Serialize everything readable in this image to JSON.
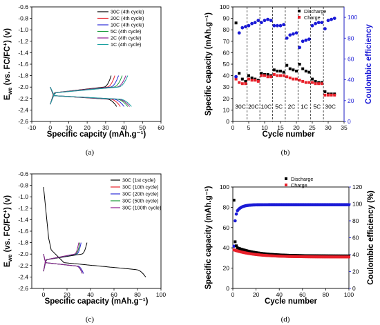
{
  "chart_data": [
    {
      "panel": "(a)",
      "type": "line",
      "xlabel": "Specific capcity (mAh.g⁻¹)",
      "ylabel_main": "E",
      "ylabel_sub": "we",
      "ylabel_rest": " (vs. FC/FC",
      "ylabel_sup": "+",
      "ylabel_end": ") (v)",
      "xlim": [
        -10,
        60
      ],
      "ylim": [
        -2.6,
        -0.6
      ],
      "xticks": [
        "-10",
        "0",
        "10",
        "20",
        "30",
        "40",
        "50",
        "60"
      ],
      "yticks": [
        "-2.6",
        "-2.4",
        "-2.2",
        "-2.0",
        "-1.8",
        "-1.6",
        "-1.4",
        "-1.2",
        "-1.0",
        "-0.8",
        "-0.6"
      ],
      "series": [
        {
          "name": "30C (4th cycle)",
          "rate": "30C",
          "color": "#000000",
          "discharge_end": 36,
          "charge_end": 33,
          "curve": "flat"
        },
        {
          "name": "20C (4th cycle)",
          "rate": "20C",
          "color": "#e8202a",
          "discharge_end": 38,
          "charge_end": 35,
          "curve": "flat"
        },
        {
          "name": "10C (4th cycle)",
          "rate": "10C",
          "color": "#2b2bd8",
          "discharge_end": 40,
          "charge_end": 37,
          "curve": "flat"
        },
        {
          "name": "5C (4th cycle)",
          "rate": "5C",
          "color": "#1a9a3a",
          "discharge_end": 42,
          "charge_end": 39,
          "curve": "flat"
        },
        {
          "name": "2C (4th cycle)",
          "rate": "2C",
          "color": "#8e1a8e",
          "discharge_end": 43,
          "charge_end": 41,
          "curve": "flat"
        },
        {
          "name": "1C (4th cycle)",
          "rate": "1C",
          "color": "#1aa0a0",
          "discharge_end": 44,
          "charge_end": 42,
          "curve": "flat"
        }
      ]
    },
    {
      "panel": "(b)",
      "type": "scatter",
      "xlabel": "Cycle number",
      "ylabel": "Specific capacity (mAh.g⁻¹)",
      "y2label": "Coulombic efficiency",
      "xlim": [
        0,
        35
      ],
      "ylim": [
        0,
        100
      ],
      "y2lim": [
        0,
        110
      ],
      "xticks": [
        "0",
        "5",
        "10",
        "15",
        "20",
        "25",
        "30",
        "35"
      ],
      "yticks": [
        "0",
        "10",
        "20",
        "30",
        "40",
        "50",
        "60",
        "70",
        "80",
        "90",
        "100"
      ],
      "y2ticks": [
        "0",
        "20",
        "40",
        "60",
        "80",
        "100"
      ],
      "rates": [
        "30C",
        "20C",
        "10C",
        "5C",
        "2C",
        "1C",
        "5C",
        "30C"
      ],
      "dividers": [
        4.5,
        8.5,
        12.5,
        16.5,
        20.5,
        24.5,
        28.5
      ],
      "legend": [
        "Discharge",
        "Charge"
      ],
      "discharge": [
        [
          1,
          86
        ],
        [
          2,
          42
        ],
        [
          3,
          37
        ],
        [
          4,
          35
        ],
        [
          5,
          40
        ],
        [
          6,
          38
        ],
        [
          7,
          37
        ],
        [
          8,
          36
        ],
        [
          9,
          42
        ],
        [
          10,
          41
        ],
        [
          11,
          41
        ],
        [
          12,
          40
        ],
        [
          13,
          45
        ],
        [
          14,
          44
        ],
        [
          15,
          44
        ],
        [
          16,
          43
        ],
        [
          17,
          49
        ],
        [
          18,
          46
        ],
        [
          19,
          45
        ],
        [
          20,
          44
        ],
        [
          21,
          50
        ],
        [
          22,
          46
        ],
        [
          23,
          44
        ],
        [
          24,
          43
        ],
        [
          25,
          37
        ],
        [
          26,
          35
        ],
        [
          27,
          34
        ],
        [
          28,
          34
        ],
        [
          29,
          26
        ],
        [
          30,
          24
        ],
        [
          31,
          24
        ],
        [
          32,
          24
        ]
      ],
      "charge": [
        [
          1,
          37
        ],
        [
          2,
          34
        ],
        [
          3,
          33
        ],
        [
          4,
          33
        ],
        [
          5,
          37
        ],
        [
          6,
          36
        ],
        [
          7,
          36
        ],
        [
          8,
          35
        ],
        [
          9,
          40
        ],
        [
          10,
          40
        ],
        [
          11,
          39
        ],
        [
          12,
          39
        ],
        [
          13,
          41
        ],
        [
          14,
          40
        ],
        [
          15,
          40
        ],
        [
          16,
          40
        ],
        [
          17,
          39
        ],
        [
          18,
          38
        ],
        [
          19,
          37
        ],
        [
          20,
          37
        ],
        [
          21,
          36
        ],
        [
          22,
          35
        ],
        [
          23,
          34
        ],
        [
          24,
          34
        ],
        [
          25,
          34
        ],
        [
          26,
          33
        ],
        [
          27,
          33
        ],
        [
          28,
          33
        ],
        [
          29,
          23
        ],
        [
          30,
          23
        ],
        [
          31,
          23
        ],
        [
          32,
          23
        ]
      ],
      "efficiency": [
        [
          1,
          43
        ],
        [
          2,
          85
        ],
        [
          3,
          90
        ],
        [
          4,
          91
        ],
        [
          5,
          92
        ],
        [
          6,
          94
        ],
        [
          7,
          95
        ],
        [
          8,
          97
        ],
        [
          9,
          95
        ],
        [
          10,
          97
        ],
        [
          11,
          98
        ],
        [
          12,
          97
        ],
        [
          13,
          92
        ],
        [
          14,
          92
        ],
        [
          15,
          92
        ],
        [
          16,
          93
        ],
        [
          17,
          80
        ],
        [
          18,
          83
        ],
        [
          19,
          84
        ],
        [
          20,
          85
        ],
        [
          21,
          71
        ],
        [
          22,
          77
        ],
        [
          23,
          78
        ],
        [
          24,
          79
        ],
        [
          25,
          92
        ],
        [
          26,
          94
        ],
        [
          27,
          95
        ],
        [
          28,
          95
        ],
        [
          29,
          89
        ],
        [
          30,
          97
        ],
        [
          31,
          98
        ],
        [
          32,
          99
        ]
      ],
      "colors": {
        "discharge": "#000000",
        "charge": "#e8202a",
        "efficiency": "#1a1ad6"
      }
    },
    {
      "panel": "(c)",
      "type": "line",
      "xlabel": "Specific capacity (mAh.g⁻¹)",
      "ylabel_main": "E",
      "ylabel_sub": "we",
      "ylabel_rest": " (vs. FC/FC",
      "ylabel_sup": "+",
      "ylabel_end": ") (v)",
      "xlim": [
        -10,
        100
      ],
      "ylim": [
        -2.6,
        -0.6
      ],
      "xticks": [
        "0",
        "20",
        "40",
        "60",
        "80",
        "100"
      ],
      "yticks": [
        "-2.6",
        "-2.4",
        "-2.2",
        "-2.0",
        "-1.8",
        "-1.6",
        "-1.4",
        "-1.2",
        "-1.0",
        "-0.8",
        "-0.6"
      ],
      "series": [
        {
          "name": "30C (1st cycle)",
          "color": "#000000",
          "discharge_end": 87,
          "charge_end": 37,
          "curve": "first"
        },
        {
          "name": "30C (10th cycle)",
          "color": "#e8202a",
          "discharge_end": 34,
          "charge_end": 31,
          "curve": "flat"
        },
        {
          "name": "30C (20th cycle)",
          "color": "#2b2bd8",
          "discharge_end": 34,
          "charge_end": 32,
          "curve": "flat"
        },
        {
          "name": "30C (50th cycle)",
          "color": "#1a9a3a",
          "discharge_end": 33,
          "charge_end": 31,
          "curve": "flat"
        },
        {
          "name": "30C (100th cycle)",
          "color": "#8e1a8e",
          "discharge_end": 33,
          "charge_end": 30,
          "curve": "flat"
        }
      ]
    },
    {
      "panel": "(d)",
      "type": "scatter",
      "xlabel": "Cycle number",
      "ylabel": "Specific capacity (mAh.g⁻¹)",
      "y2label": "Coulombic efficiency (%)",
      "xlim": [
        0,
        100
      ],
      "ylim": [
        0,
        100
      ],
      "y2lim": [
        0,
        120
      ],
      "xticks": [
        "0",
        "20",
        "40",
        "60",
        "80",
        "100"
      ],
      "yticks": [
        "0",
        "20",
        "40",
        "60",
        "80",
        "100"
      ],
      "y2ticks": [
        "0",
        "20",
        "40",
        "60",
        "80",
        "100",
        "120"
      ],
      "legend": [
        "Discharge",
        "Charge"
      ],
      "colors": {
        "discharge": "#000000",
        "charge": "#e8202a",
        "efficiency": "#1a1ad6"
      },
      "discharge_first": [
        [
          1,
          87
        ],
        [
          2,
          46
        ],
        [
          3,
          42
        ]
      ],
      "discharge_start": 40,
      "discharge_end": 32,
      "charge_start": 38,
      "charge_end": 31,
      "efficiency_first": [
        [
          1,
          50
        ],
        [
          2,
          80
        ],
        [
          3,
          88
        ]
      ],
      "efficiency_plateau": 99
    }
  ],
  "captions": [
    "(a)",
    "(b)",
    "(c)",
    "(d)"
  ]
}
